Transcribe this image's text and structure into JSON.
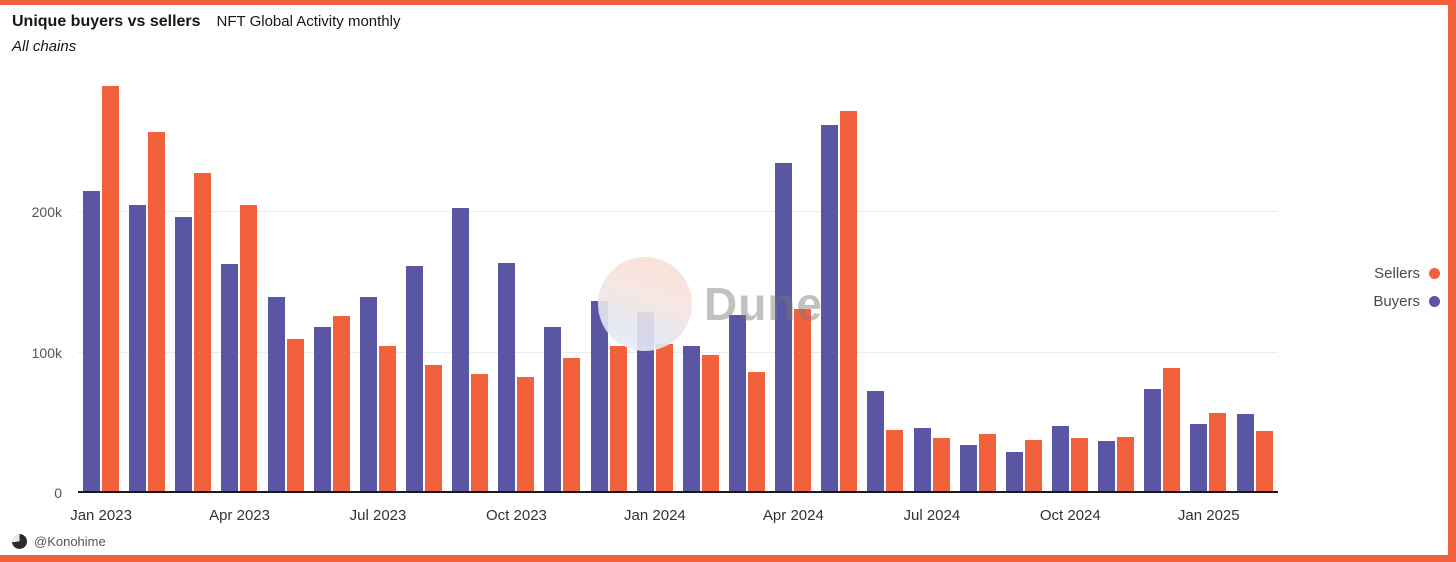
{
  "page": {
    "border_color": "#F2603C",
    "background": "#FFFFFF"
  },
  "watermark": {
    "text": "Dune"
  },
  "footer": {
    "handle": "@Konohime"
  },
  "legend": {
    "position": "right",
    "items": [
      {
        "label": "Sellers",
        "color": "#F2603C"
      },
      {
        "label": "Buyers",
        "color": "#5B56A4"
      }
    ]
  },
  "chart_data": {
    "type": "bar",
    "title": "Unique buyers vs sellers",
    "subtitle": "NFT Global Activity monthly",
    "filter_label": "All chains",
    "grid": true,
    "legend_position": "right",
    "categories": [
      "Jan 2023",
      "Feb 2023",
      "Mar 2023",
      "Apr 2023",
      "May 2023",
      "Jun 2023",
      "Jul 2023",
      "Aug 2023",
      "Sep 2023",
      "Oct 2023",
      "Nov 2023",
      "Dec 2023",
      "Jan 2024",
      "Feb 2024",
      "Mar 2024",
      "Apr 2024",
      "May 2024",
      "Jun 2024",
      "Jul 2024",
      "Aug 2024",
      "Sep 2024",
      "Oct 2024",
      "Nov 2024",
      "Dec 2024",
      "Jan 2025",
      "Feb 2025"
    ],
    "series": [
      {
        "name": "Buyers",
        "color": "#5B56A4",
        "values": [
          215000,
          205000,
          197000,
          163000,
          140000,
          118000,
          140000,
          162000,
          203000,
          164000,
          118000,
          137000,
          129000,
          105000,
          127000,
          235000,
          262000,
          73000,
          46000,
          34000,
          29000,
          48000,
          37000,
          74000,
          49000,
          56000
        ]
      },
      {
        "name": "Sellers",
        "color": "#F2603C",
        "values": [
          290000,
          257000,
          228000,
          205000,
          110000,
          126000,
          105000,
          91000,
          85000,
          83000,
          96000,
          105000,
          106000,
          98000,
          86000,
          131000,
          272000,
          45000,
          39000,
          42000,
          38000,
          39000,
          40000,
          89000,
          57000,
          44000
        ]
      }
    ],
    "ylim": [
      0,
      300000
    ],
    "ytick_values": [
      0,
      100000,
      200000
    ],
    "yticks": [
      "0",
      "100k",
      "200k"
    ],
    "xticks": [
      "Jan 2023",
      "Apr 2023",
      "Jul 2023",
      "Oct 2023",
      "Jan 2024",
      "Apr 2024",
      "Jul 2024",
      "Oct 2024",
      "Jan 2025"
    ],
    "xtick_month_indices": [
      0,
      3,
      6,
      9,
      12,
      15,
      18,
      21,
      24
    ]
  }
}
